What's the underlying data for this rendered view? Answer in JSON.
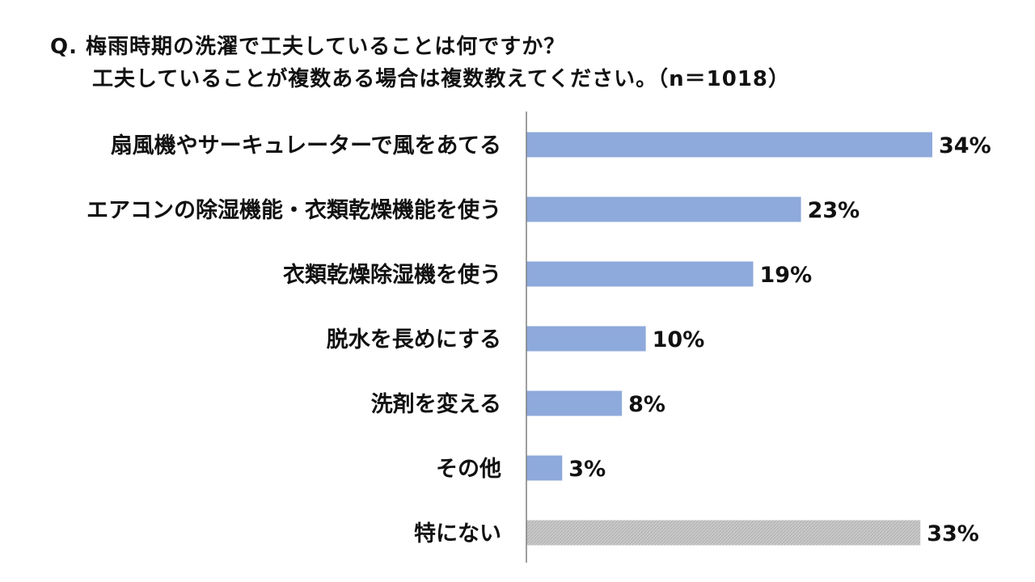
{
  "chart_data": {
    "type": "bar",
    "orientation": "horizontal",
    "title": "Q. 梅雨時期の洗濯で工夫していることは何ですか？",
    "subtitle": "工夫していることが複数ある場合は複数教えてください。（n＝1018）",
    "categories": [
      "扇風機やサーキュレーターで風をあてる",
      "エアコンの除湿機能・衣類乾燥機能を使う",
      "衣類乾燥除湿機を使う",
      "脱水を長めにする",
      "洗剤を変える",
      "その他",
      "特にない"
    ],
    "values": [
      34,
      23,
      19,
      10,
      8,
      3,
      33
    ],
    "data_labels": [
      "34%",
      "23%",
      "19%",
      "10%",
      "8%",
      "3%",
      "33%"
    ],
    "value_unit": "%",
    "xlim": [
      0,
      34
    ],
    "grid": false,
    "legend": "none",
    "colors": {
      "bar": "#8EA9DB",
      "bar_none": "#C9C9C9",
      "bar_none_hatch": "#B0B0B0",
      "axis": "#7F7F7F"
    }
  }
}
